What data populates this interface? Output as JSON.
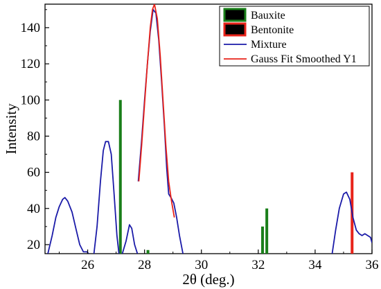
{
  "chart_data": {
    "type": "line",
    "xlabel": "2θ (deg.)",
    "ylabel": "Intensity",
    "xlim": [
      24.5,
      36
    ],
    "ylim": [
      15,
      153
    ],
    "x_ticks": [
      26,
      28,
      30,
      32,
      34,
      36
    ],
    "y_ticks": [
      20,
      40,
      60,
      80,
      100,
      120,
      140
    ],
    "grid": false,
    "legend_position": "top-right",
    "legend": [
      {
        "label": "Bauxite",
        "kind": "box",
        "fill": "#000000",
        "edge": "#1a7f1a"
      },
      {
        "label": "Bentonite",
        "kind": "box",
        "fill": "#000000",
        "edge": "#e8231a"
      },
      {
        "label": "Mixture",
        "kind": "line",
        "color": "#1a1aa8"
      },
      {
        "label": "Gauss Fit Smoothed Y1",
        "kind": "line",
        "color": "#e8231a"
      }
    ],
    "series": [
      {
        "name": "Bauxite",
        "type": "bar",
        "color": "#1a7f1a",
        "x": [
          27.15,
          28.12,
          32.15,
          32.3
        ],
        "values": [
          100,
          17,
          30,
          40
        ]
      },
      {
        "name": "Bentonite",
        "type": "bar",
        "color": "#e8231a",
        "x": [
          35.3
        ],
        "values": [
          60
        ]
      },
      {
        "name": "Mixture",
        "type": "line",
        "color": "#1a1aa8",
        "segments": [
          [
            [
              24.6,
              15
            ],
            [
              24.75,
              25
            ],
            [
              24.88,
              35
            ],
            [
              25.0,
              41
            ],
            [
              25.12,
              45
            ],
            [
              25.2,
              46
            ],
            [
              25.3,
              44
            ],
            [
              25.45,
              38
            ],
            [
              25.6,
              28
            ],
            [
              25.72,
              20
            ],
            [
              25.85,
              16
            ],
            [
              25.98,
              16
            ],
            [
              26.03,
              15
            ]
          ],
          [
            [
              26.22,
              15
            ],
            [
              26.33,
              30
            ],
            [
              26.45,
              55
            ],
            [
              26.55,
              72
            ],
            [
              26.63,
              77
            ],
            [
              26.73,
              77
            ],
            [
              26.83,
              70
            ],
            [
              26.93,
              48
            ],
            [
              27.03,
              25
            ],
            [
              27.1,
              15
            ]
          ],
          [
            [
              27.22,
              15
            ],
            [
              27.35,
              22
            ],
            [
              27.47,
              31
            ],
            [
              27.55,
              29
            ],
            [
              27.65,
              20
            ],
            [
              27.75,
              15
            ]
          ],
          [
            [
              27.78,
              55
            ],
            [
              27.9,
              78
            ],
            [
              28.0,
              100
            ],
            [
              28.1,
              120
            ],
            [
              28.2,
              138
            ],
            [
              28.3,
              150
            ],
            [
              28.4,
              148
            ],
            [
              28.5,
              133
            ],
            [
              28.6,
              110
            ],
            [
              28.7,
              85
            ],
            [
              28.78,
              62
            ],
            [
              28.85,
              48
            ],
            [
              28.93,
              46
            ],
            [
              29.03,
              43
            ],
            [
              29.13,
              35
            ],
            [
              29.23,
              25
            ],
            [
              29.35,
              15
            ]
          ],
          [
            [
              34.6,
              15
            ],
            [
              34.72,
              28
            ],
            [
              34.85,
              40
            ],
            [
              35.0,
              48
            ],
            [
              35.1,
              49
            ],
            [
              35.22,
              45
            ],
            [
              35.33,
              35
            ],
            [
              35.45,
              28
            ],
            [
              35.55,
              26
            ],
            [
              35.65,
              25
            ],
            [
              35.75,
              26
            ],
            [
              35.85,
              25
            ],
            [
              35.95,
              24
            ],
            [
              36.0,
              21
            ]
          ]
        ]
      },
      {
        "name": "Gauss Fit Smoothed Y1",
        "type": "line",
        "color": "#e8231a",
        "segments": [
          [
            [
              27.8,
              55
            ],
            [
              27.9,
              75
            ],
            [
              28.0,
              98
            ],
            [
              28.1,
              120
            ],
            [
              28.2,
              140
            ],
            [
              28.28,
              150
            ],
            [
              28.35,
              153
            ],
            [
              28.45,
              145
            ],
            [
              28.55,
              125
            ],
            [
              28.65,
              100
            ],
            [
              28.75,
              75
            ],
            [
              28.85,
              55
            ],
            [
              28.95,
              44
            ],
            [
              29.05,
              35
            ]
          ]
        ]
      }
    ]
  }
}
